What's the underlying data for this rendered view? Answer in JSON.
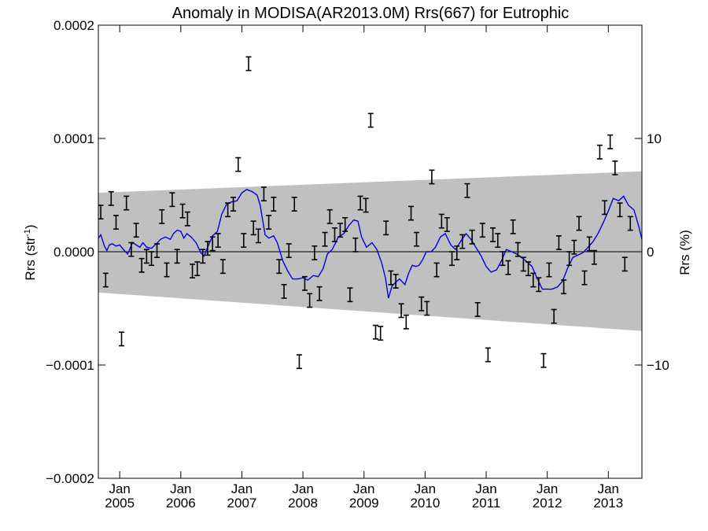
{
  "chart_data": {
    "type": "scatter",
    "title": "Anomaly in MODISA(AR2013.0M) Rrs(667) for Eutrophic",
    "ylabel_left": {
      "main": "Rrs (str",
      "sup": "-1",
      "close": ")"
    },
    "ylabel_right": "Rrs (%)",
    "x_range": [
      2004.65,
      2013.55
    ],
    "ylim": [
      -0.0002,
      0.0002
    ],
    "y_ticks": [
      {
        "value": 0.0002,
        "label": "0.0002"
      },
      {
        "value": 0.0001,
        "label": "0.0001"
      },
      {
        "value": 0.0,
        "label": "0.0000"
      },
      {
        "value": -0.0001,
        "label": "−0.0001"
      },
      {
        "value": -0.0002,
        "label": "−0.0002"
      }
    ],
    "y2_ticks": [
      {
        "value": 0.0001,
        "label": "10"
      },
      {
        "value": 0.0,
        "label": "0"
      },
      {
        "value": -0.0001,
        "label": "−10"
      }
    ],
    "x_ticks": [
      {
        "value": 2005.0,
        "month": "Jan",
        "year": "2005"
      },
      {
        "value": 2006.0,
        "month": "Jan",
        "year": "2006"
      },
      {
        "value": 2007.0,
        "month": "Jan",
        "year": "2007"
      },
      {
        "value": 2008.0,
        "month": "Jan",
        "year": "2008"
      },
      {
        "value": 2009.0,
        "month": "Jan",
        "year": "2009"
      },
      {
        "value": 2010.0,
        "month": "Jan",
        "year": "2010"
      },
      {
        "value": 2011.0,
        "month": "Jan",
        "year": "2011"
      },
      {
        "value": 2012.0,
        "month": "Jan",
        "year": "2012"
      },
      {
        "value": 2013.0,
        "month": "Jan",
        "year": "2013"
      }
    ],
    "band": {
      "x": [
        2004.65,
        2013.55
      ],
      "upper": [
        5.2e-05,
        7.1e-05
      ],
      "lower": [
        -3.6e-05,
        -7e-05
      ]
    },
    "error_half_width": 6e-06,
    "points": [
      [
        2004.69,
        3.5e-05
      ],
      [
        2004.77,
        -2.5e-05
      ],
      [
        2004.86,
        4.7e-05
      ],
      [
        2004.94,
        2.6e-05
      ],
      [
        2005.03,
        -7.7e-05
      ],
      [
        2005.11,
        4.3e-05
      ],
      [
        2005.19,
        2e-06
      ],
      [
        2005.27,
        1.9e-05
      ],
      [
        2005.36,
        -1.2e-05
      ],
      [
        2005.44,
        -4e-06
      ],
      [
        2005.52,
        -6e-06
      ],
      [
        2005.61,
        1e-06
      ],
      [
        2005.69,
        3.1e-05
      ],
      [
        2005.77,
        -1.6e-05
      ],
      [
        2005.86,
        4.6e-05
      ],
      [
        2005.94,
        -4e-06
      ],
      [
        2006.03,
        3.6e-05
      ],
      [
        2006.11,
        2.9e-05
      ],
      [
        2006.19,
        -1.7e-05
      ],
      [
        2006.27,
        -1.5e-05
      ],
      [
        2006.36,
        -4e-06
      ],
      [
        2006.44,
        3e-06
      ],
      [
        2006.52,
        7e-06
      ],
      [
        2006.61,
        1e-05
      ],
      [
        2006.69,
        -1.3e-05
      ],
      [
        2006.77,
        3.7e-05
      ],
      [
        2006.86,
        4.2e-05
      ],
      [
        2006.94,
        7.7e-05
      ],
      [
        2007.03,
        1e-05
      ],
      [
        2007.11,
        0.000166
      ],
      [
        2007.19,
        2.1e-05
      ],
      [
        2007.27,
        1.4e-05
      ],
      [
        2007.36,
        5.1e-05
      ],
      [
        2007.44,
        2.6e-05
      ],
      [
        2007.52,
        4.2e-05
      ],
      [
        2007.61,
        -1.3e-05
      ],
      [
        2007.69,
        -3.5e-05
      ],
      [
        2007.77,
        1e-06
      ],
      [
        2007.86,
        4.2e-05
      ],
      [
        2007.94,
        -9.7e-05
      ],
      [
        2008.03,
        -2.8e-05
      ],
      [
        2008.11,
        -4.3e-05
      ],
      [
        2008.19,
        -1e-06
      ],
      [
        2008.27,
        -3.7e-05
      ],
      [
        2008.36,
        1.1e-05
      ],
      [
        2008.44,
        3.1e-05
      ],
      [
        2008.52,
        1.5e-05
      ],
      [
        2008.61,
        1.9e-05
      ],
      [
        2008.69,
        2.4e-05
      ],
      [
        2008.77,
        -3.8e-05
      ],
      [
        2008.86,
        6e-06
      ],
      [
        2008.94,
        4.3e-05
      ],
      [
        2009.03,
        4.1e-05
      ],
      [
        2009.11,
        0.000116
      ],
      [
        2009.19,
        -7.1e-05
      ],
      [
        2009.27,
        -7.2e-05
      ],
      [
        2009.36,
        2.1e-05
      ],
      [
        2009.44,
        -2.3e-05
      ],
      [
        2009.52,
        -2.6e-05
      ],
      [
        2009.61,
        -5.2e-05
      ],
      [
        2009.69,
        -6.2e-05
      ],
      [
        2009.77,
        3.4e-05
      ],
      [
        2009.86,
        1.1e-05
      ],
      [
        2009.94,
        -4.6e-05
      ],
      [
        2010.03,
        -5e-05
      ],
      [
        2010.11,
        6.6e-05
      ],
      [
        2010.19,
        -1.6e-05
      ],
      [
        2010.27,
        2.7e-05
      ],
      [
        2010.36,
        2.4e-05
      ],
      [
        2010.44,
        -6e-06
      ],
      [
        2010.52,
        -1e-06
      ],
      [
        2010.61,
        9e-06
      ],
      [
        2010.69,
        5.4e-05
      ],
      [
        2010.77,
        1.3e-05
      ],
      [
        2010.86,
        -5.1e-05
      ],
      [
        2010.94,
        1.9e-05
      ],
      [
        2011.03,
        -9.1e-05
      ],
      [
        2011.11,
        1.5e-05
      ],
      [
        2011.19,
        1e-05
      ],
      [
        2011.27,
        -6e-06
      ],
      [
        2011.36,
        -1.4e-05
      ],
      [
        2011.44,
        2.2e-05
      ],
      [
        2011.52,
        2e-06
      ],
      [
        2011.61,
        -1.1e-05
      ],
      [
        2011.69,
        -1.5e-05
      ],
      [
        2011.77,
        -2.5e-05
      ],
      [
        2011.86,
        -2.9e-05
      ],
      [
        2011.94,
        -9.6e-05
      ],
      [
        2012.03,
        -1.6e-05
      ],
      [
        2012.11,
        -5.7e-05
      ],
      [
        2012.19,
        8e-06
      ],
      [
        2012.27,
        -3.1e-05
      ],
      [
        2012.36,
        -6e-06
      ],
      [
        2012.44,
        4e-06
      ],
      [
        2012.52,
        2.5e-05
      ],
      [
        2012.61,
        -2.3e-05
      ],
      [
        2012.69,
        7e-06
      ],
      [
        2012.77,
        -5e-06
      ],
      [
        2012.86,
        8.8e-05
      ],
      [
        2012.94,
        3.9e-05
      ],
      [
        2013.03,
        9.7e-05
      ],
      [
        2013.11,
        7.4e-05
      ],
      [
        2013.19,
        3.7e-05
      ],
      [
        2013.27,
        -1.1e-05
      ],
      [
        2013.36,
        2.5e-05
      ]
    ],
    "smooth": [
      [
        2004.65,
        1.2e-05
      ],
      [
        2004.69,
        1.5e-05
      ],
      [
        2004.75,
        5e-06
      ],
      [
        2004.79,
        1e-06
      ],
      [
        2004.83,
        6e-06
      ],
      [
        2004.88,
        7e-06
      ],
      [
        2004.94,
        5e-06
      ],
      [
        2005.0,
        6e-06
      ],
      [
        2005.06,
        2e-06
      ],
      [
        2005.13,
        -2e-06
      ],
      [
        2005.21,
        8e-06
      ],
      [
        2005.27,
        6e-06
      ],
      [
        2005.33,
        4e-06
      ],
      [
        2005.38,
        8e-06
      ],
      [
        2005.44,
        4e-06
      ],
      [
        2005.52,
        3e-06
      ],
      [
        2005.6,
        7e-06
      ],
      [
        2005.67,
        1.1e-05
      ],
      [
        2005.75,
        1.3e-05
      ],
      [
        2005.83,
        1.1e-05
      ],
      [
        2005.88,
        1.6e-05
      ],
      [
        2005.94,
        1.9e-05
      ],
      [
        2006.0,
        1.8e-05
      ],
      [
        2006.05,
        1.2e-05
      ],
      [
        2006.1,
        1.6e-05
      ],
      [
        2006.17,
        1.3e-05
      ],
      [
        2006.25,
        8e-06
      ],
      [
        2006.33,
        -1e-06
      ],
      [
        2006.38,
        -4e-06
      ],
      [
        2006.44,
        4e-06
      ],
      [
        2006.52,
        1.4e-05
      ],
      [
        2006.6,
        1.8e-05
      ],
      [
        2006.67,
        3.3e-05
      ],
      [
        2006.75,
        4.2e-05
      ],
      [
        2006.83,
        4.4e-05
      ],
      [
        2006.92,
        4.5e-05
      ],
      [
        2007.0,
        5.2e-05
      ],
      [
        2007.08,
        5.5e-05
      ],
      [
        2007.17,
        5.3e-05
      ],
      [
        2007.25,
        5e-05
      ],
      [
        2007.3,
        4.1e-05
      ],
      [
        2007.38,
        1.5e-05
      ],
      [
        2007.44,
        1.2e-05
      ],
      [
        2007.52,
        1.4e-05
      ],
      [
        2007.58,
        8e-06
      ],
      [
        2007.67,
        -8e-06
      ],
      [
        2007.75,
        -1.7e-05
      ],
      [
        2007.83,
        -2.4e-05
      ],
      [
        2007.92,
        -2.4e-05
      ],
      [
        2008.0,
        -2.3e-05
      ],
      [
        2008.08,
        -2.5e-05
      ],
      [
        2008.17,
        -2.1e-05
      ],
      [
        2008.25,
        -2.2e-05
      ],
      [
        2008.33,
        -1.5e-05
      ],
      [
        2008.4,
        -2e-06
      ],
      [
        2008.48,
        2e-06
      ],
      [
        2008.58,
        1.3e-05
      ],
      [
        2008.67,
        1.6e-05
      ],
      [
        2008.75,
        2.3e-05
      ],
      [
        2008.83,
        2.8e-05
      ],
      [
        2008.9,
        2.7e-05
      ],
      [
        2008.96,
        1.3e-05
      ],
      [
        2009.04,
        4e-06
      ],
      [
        2009.13,
        8e-06
      ],
      [
        2009.21,
        2e-06
      ],
      [
        2009.29,
        -1e-05
      ],
      [
        2009.35,
        -2.3e-05
      ],
      [
        2009.4,
        -4.1e-05
      ],
      [
        2009.46,
        -3e-05
      ],
      [
        2009.52,
        -2.7e-05
      ],
      [
        2009.58,
        -2.4e-05
      ],
      [
        2009.67,
        -2.9e-05
      ],
      [
        2009.73,
        -1.9e-05
      ],
      [
        2009.79,
        -1.2e-05
      ],
      [
        2009.85,
        -1.3e-05
      ],
      [
        2009.9,
        -1.2e-05
      ],
      [
        2009.96,
        -7e-06
      ],
      [
        2010.02,
        0.0
      ],
      [
        2010.1,
        0.0
      ],
      [
        2010.17,
        4e-06
      ],
      [
        2010.25,
        1.3e-05
      ],
      [
        2010.33,
        1.6e-05
      ],
      [
        2010.42,
        6e-06
      ],
      [
        2010.5,
        2e-06
      ],
      [
        2010.58,
        9e-06
      ],
      [
        2010.67,
        1.6e-05
      ],
      [
        2010.75,
        1.1e-05
      ],
      [
        2010.83,
        4e-06
      ],
      [
        2010.92,
        -4e-06
      ],
      [
        2011.0,
        -1.3e-05
      ],
      [
        2011.08,
        -1.8e-05
      ],
      [
        2011.17,
        -1.6e-05
      ],
      [
        2011.25,
        -8e-06
      ],
      [
        2011.33,
        2e-06
      ],
      [
        2011.42,
        0.0
      ],
      [
        2011.5,
        -2e-06
      ],
      [
        2011.58,
        -5e-06
      ],
      [
        2011.67,
        -9e-06
      ],
      [
        2011.75,
        -1.3e-05
      ],
      [
        2011.83,
        -2.3e-05
      ],
      [
        2011.92,
        -3.3e-05
      ],
      [
        2012.0,
        -3.3e-05
      ],
      [
        2012.08,
        -3.3e-05
      ],
      [
        2012.17,
        -3.1e-05
      ],
      [
        2012.25,
        -2.6e-05
      ],
      [
        2012.33,
        -1.5e-05
      ],
      [
        2012.42,
        -5e-06
      ],
      [
        2012.5,
        -3e-06
      ],
      [
        2012.58,
        -1e-06
      ],
      [
        2012.67,
        4e-06
      ],
      [
        2012.75,
        9e-06
      ],
      [
        2012.83,
        1.6e-05
      ],
      [
        2012.92,
        2.6e-05
      ],
      [
        2013.0,
        3.6e-05
      ],
      [
        2013.08,
        4.7e-05
      ],
      [
        2013.17,
        4.5e-05
      ],
      [
        2013.25,
        4.9e-05
      ],
      [
        2013.33,
        4.1e-05
      ],
      [
        2013.42,
        3.7e-05
      ],
      [
        2013.5,
        2.2e-05
      ],
      [
        2013.55,
        1.1e-05
      ]
    ],
    "colors": {
      "band": "#c0c0c0",
      "smooth": "#0000e6",
      "points": "#000000",
      "zero_line": "#000000",
      "axes": "#000000"
    },
    "grid": false,
    "legend": "none"
  }
}
